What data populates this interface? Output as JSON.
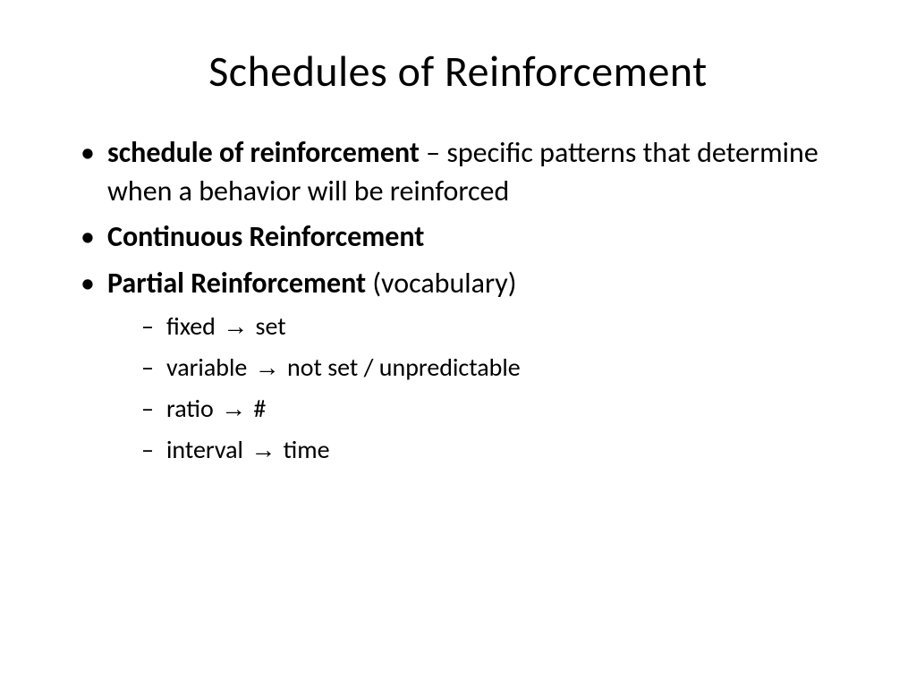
{
  "slide": {
    "title": "Schedules of Reinforcement",
    "title_fontsize": 48,
    "title_fontweight": 400,
    "title_color": "#000000",
    "body_fontsize_main": 32,
    "body_fontsize_sub": 28,
    "body_color": "#000000",
    "background_color": "#ffffff",
    "bullets": [
      {
        "bold_prefix": "schedule of reinforcement",
        "rest": " – specific patterns that determine when a behavior will be reinforced"
      },
      {
        "bold_prefix": "Continuous Reinforcement",
        "rest": ""
      },
      {
        "bold_prefix": "Partial Reinforcement",
        "rest": " (vocabulary)",
        "sub_items": [
          {
            "term": "fixed",
            "arrow": "→",
            "definition": "set"
          },
          {
            "term": "variable",
            "arrow": "→",
            "definition": "not set / unpredictable"
          },
          {
            "term": "ratio",
            "arrow": "→",
            "definition": "#"
          },
          {
            "term": "interval",
            "arrow": "→",
            "definition": "time"
          }
        ]
      }
    ]
  }
}
